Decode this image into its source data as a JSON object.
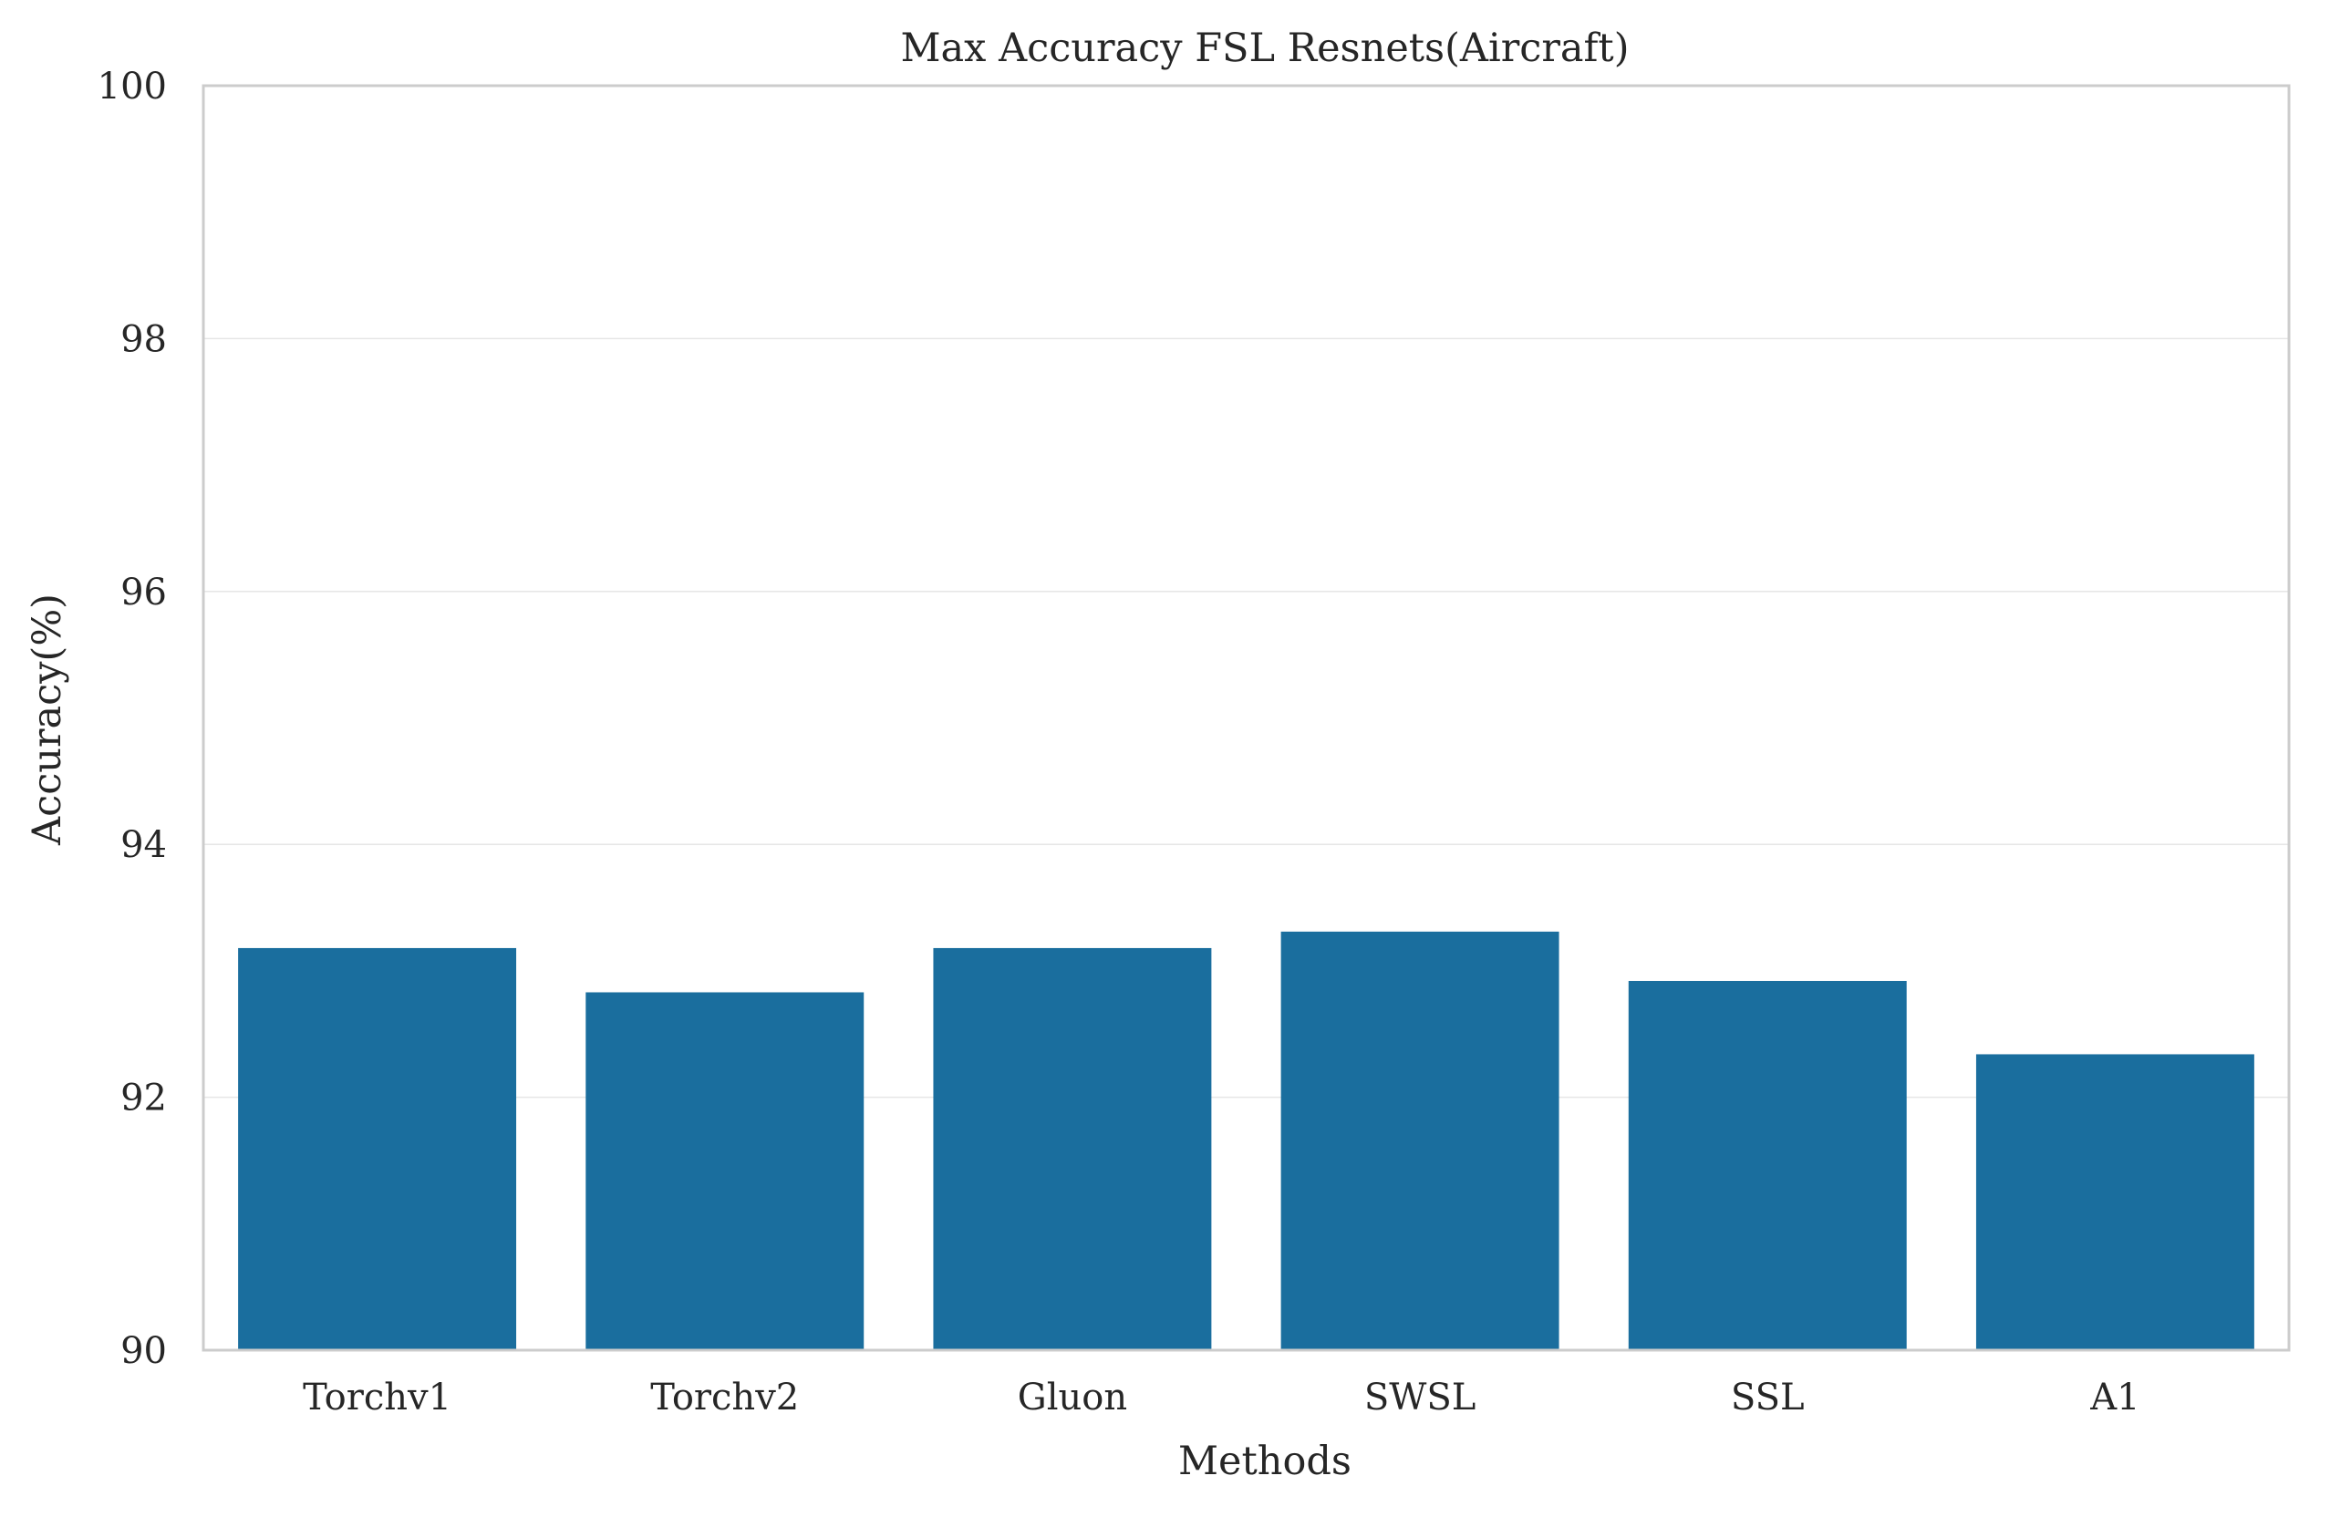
{
  "chart_data": {
    "type": "bar",
    "title": "Max Accuracy FSL Resnets(Aircraft)",
    "xlabel": "Methods",
    "ylabel": "Accuracy(%)",
    "categories": [
      "Torchv1",
      "Torchv2",
      "Gluon",
      "SWSL",
      "SSL",
      "A1"
    ],
    "values": [
      93.18,
      92.83,
      93.18,
      93.31,
      92.92,
      92.34
    ],
    "ylim": [
      90,
      100
    ],
    "yticks": [
      "90",
      "92",
      "94",
      "96",
      "98",
      "100"
    ],
    "grid": true,
    "legend": "none",
    "bar_color": "#1a6e9e",
    "grid_color": "#e6e6e6",
    "spine_color": "#cccccc"
  }
}
